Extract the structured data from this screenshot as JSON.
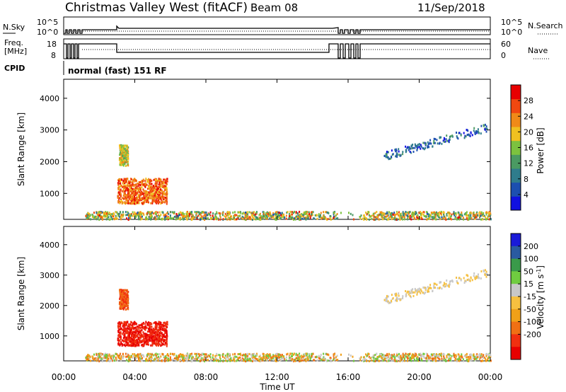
{
  "header": {
    "title": "Christmas Valley West (fitACF)",
    "beam": "Beam 08",
    "date": "11/Sep/2018"
  },
  "param_panel": {
    "nsky_label": "N.Sky",
    "nsearch_label": "N.Search",
    "freq_label_top": "Freq.",
    "freq_label_bottom": "[MHz]",
    "nave_label": "Nave",
    "cpid_label": "CPID",
    "cpid_text": "normal (fast) 151 RF",
    "noise_ticks": [
      "10^5",
      "10^0"
    ],
    "freq_ticks": [
      "18",
      "8"
    ],
    "nave_ticks": [
      "60",
      "0"
    ]
  },
  "colors": {
    "power_scale": [
      "#1010e0",
      "#1c4fb0",
      "#2f7c8c",
      "#4a9a62",
      "#7cc23f",
      "#f0c020",
      "#f08a18",
      "#f04810",
      "#e80000"
    ],
    "velocity_scale": [
      "#e80000",
      "#f03010",
      "#f07014",
      "#f0a018",
      "#f6c040",
      "#c8c8c8",
      "#70cc40",
      "#3a9a4a",
      "#2a5aa0",
      "#1a1ad8"
    ]
  },
  "chart_data": [
    {
      "type": "heatmap",
      "name": "power",
      "ylabel": "Slant Range [km]",
      "ylim": [
        180,
        4600
      ],
      "xlim": [
        0,
        24
      ],
      "y_ticks": [
        1000,
        2000,
        3000,
        4000
      ],
      "colorbar": {
        "label": "Power [dB]",
        "range": [
          0,
          32
        ],
        "ticks": [
          4,
          8,
          12,
          16,
          20,
          24,
          28
        ]
      },
      "features": [
        {
          "region": "E/F near-range band",
          "t": [
            1.2,
            24
          ],
          "r": [
            200,
            450
          ],
          "value_db": 14
        },
        {
          "region": "main F-region echo",
          "t": [
            3.0,
            5.8
          ],
          "r": [
            700,
            1500
          ],
          "value_db": 22
        },
        {
          "region": "upper echo patch",
          "t": [
            3.1,
            3.6
          ],
          "r": [
            1900,
            2550
          ],
          "value_db": 16
        },
        {
          "region": "far-range arc",
          "t": [
            18.0,
            23.8
          ],
          "r": [
            2100,
            3150
          ],
          "value_db": 10
        }
      ]
    },
    {
      "type": "heatmap",
      "name": "velocity",
      "ylabel": "Slant Range [km]",
      "xlabel": "Time UT",
      "ylim": [
        180,
        4600
      ],
      "xlim": [
        0,
        24
      ],
      "x_ticks": [
        "00:00",
        "04:00",
        "08:00",
        "12:00",
        "16:00",
        "20:00",
        "00:00"
      ],
      "y_ticks": [
        1000,
        2000,
        3000,
        4000
      ],
      "colorbar": {
        "label": "Velocity [m s^-1]",
        "ticks": [
          "200",
          "100",
          "50",
          "15",
          "-15",
          "-50",
          "-100",
          "-200"
        ]
      },
      "features": [
        {
          "region": "near-range band",
          "t": [
            1.2,
            24
          ],
          "r": [
            200,
            450
          ],
          "value_ms": -30
        },
        {
          "region": "main F-region echo",
          "t": [
            3.0,
            5.8
          ],
          "r": [
            700,
            1500
          ],
          "value_ms": -180
        },
        {
          "region": "upper echo patch",
          "t": [
            3.1,
            3.6
          ],
          "r": [
            1900,
            2550
          ],
          "value_ms": -80
        },
        {
          "region": "far-range arc",
          "t": [
            18.0,
            23.8
          ],
          "r": [
            2100,
            3150
          ],
          "value_ms": 0
        }
      ]
    }
  ]
}
